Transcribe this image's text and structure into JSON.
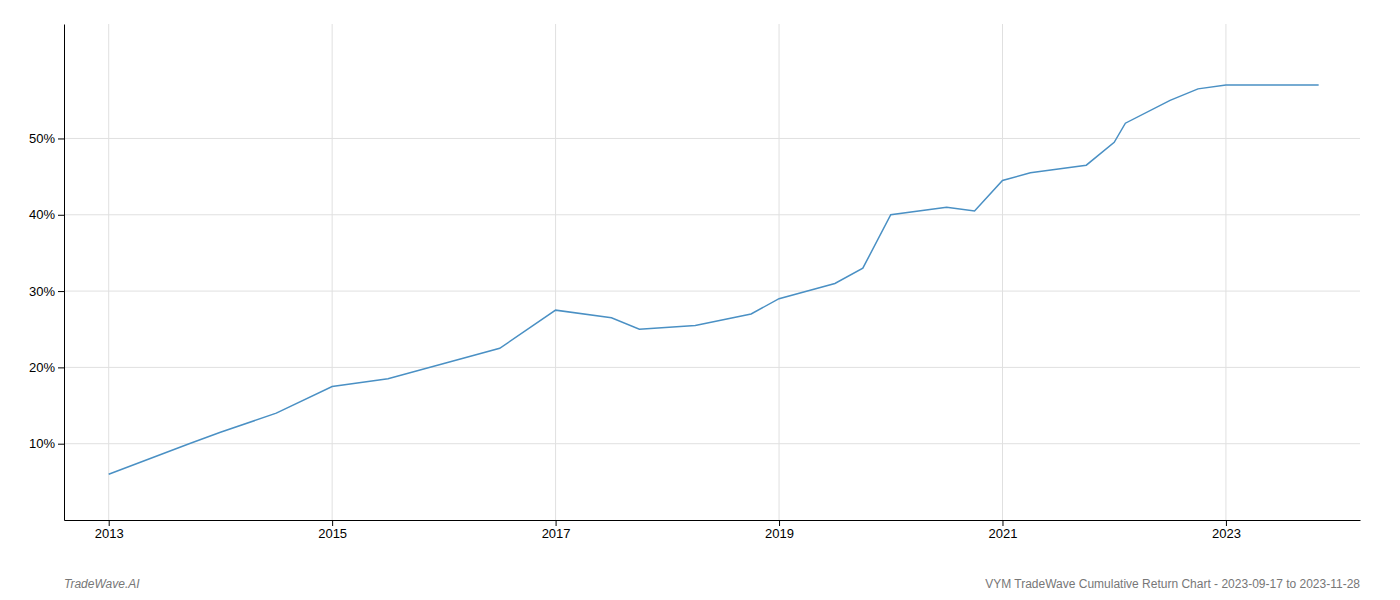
{
  "chart_data": {
    "type": "line",
    "title": "VYM TradeWave Cumulative Return Chart - 2023-09-17 to 2023-11-28",
    "annotations": [
      "TradeWave.AI"
    ],
    "x": [
      2013.0,
      2013.72,
      2014.0,
      2014.5,
      2015.0,
      2015.5,
      2016.0,
      2016.5,
      2017.0,
      2017.5,
      2017.75,
      2018.25,
      2018.75,
      2019.0,
      2019.5,
      2019.75,
      2020.0,
      2020.5,
      2020.75,
      2021.0,
      2021.25,
      2021.5,
      2021.75,
      2022.0,
      2022.1,
      2022.5,
      2022.75,
      2023.0,
      2023.83
    ],
    "values": [
      6.0,
      10.0,
      11.5,
      14.0,
      17.5,
      18.5,
      20.5,
      22.5,
      27.5,
      26.5,
      25.0,
      25.5,
      27.0,
      29.0,
      31.0,
      33.0,
      40.0,
      41.0,
      40.5,
      44.5,
      45.5,
      46.0,
      46.5,
      49.5,
      52.0,
      55.0,
      56.5,
      57.0,
      57.0
    ],
    "color": "#4a90c4",
    "xlim": [
      2012.6,
      2024.2
    ],
    "ylim": [
      0,
      65
    ],
    "xticks": [
      2013,
      2015,
      2017,
      2019,
      2021,
      2023
    ],
    "yticks": [
      {
        "value": 10,
        "label": "10%"
      },
      {
        "value": 20,
        "label": "20%"
      },
      {
        "value": 30,
        "label": "30%"
      },
      {
        "value": 40,
        "label": "40%"
      },
      {
        "value": 50,
        "label": "50%"
      }
    ],
    "grid": true
  }
}
